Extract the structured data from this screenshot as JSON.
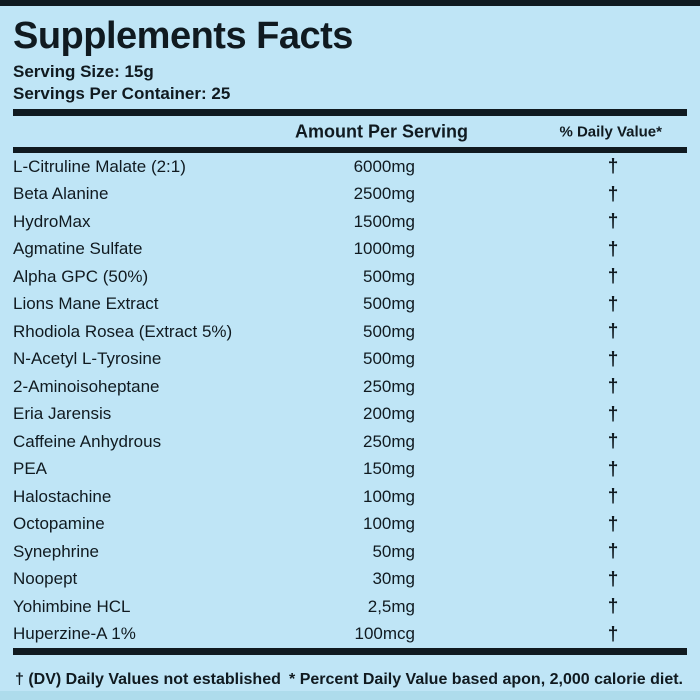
{
  "label": {
    "title": "Supplements Facts",
    "serving_size": "Serving Size: 15g",
    "servings_per_container": "Servings Per Container: 25",
    "columns": {
      "amount": "Amount Per Serving",
      "daily_value": "% Daily Value*"
    },
    "rows": [
      {
        "name": "L-Citruline Malate (2:1)",
        "amount": "6000mg",
        "dv": "†"
      },
      {
        "name": "Beta Alanine",
        "amount": "2500mg",
        "dv": "†"
      },
      {
        "name": "HydroMax",
        "amount": "1500mg",
        "dv": "†"
      },
      {
        "name": "Agmatine Sulfate",
        "amount": "1000mg",
        "dv": "†"
      },
      {
        "name": "Alpha GPC (50%)",
        "amount": "500mg",
        "dv": "†"
      },
      {
        "name": "Lions Mane Extract",
        "amount": "500mg",
        "dv": "†"
      },
      {
        "name": "Rhodiola Rosea (Extract 5%)",
        "amount": "500mg",
        "dv": "†"
      },
      {
        "name": "N-Acetyl L-Tyrosine",
        "amount": "500mg",
        "dv": "†"
      },
      {
        "name": "2-Aminoisoheptane",
        "amount": "250mg",
        "dv": "†"
      },
      {
        "name": "Eria Jarensis",
        "amount": "200mg",
        "dv": "†"
      },
      {
        "name": "Caffeine Anhydrous",
        "amount": "250mg",
        "dv": "†"
      },
      {
        "name": "PEA",
        "amount": "150mg",
        "dv": "†"
      },
      {
        "name": "Halostachine",
        "amount": "100mg",
        "dv": "†"
      },
      {
        "name": "Octopamine",
        "amount": "100mg",
        "dv": "†"
      },
      {
        "name": "Synephrine",
        "amount": "50mg",
        "dv": "†"
      },
      {
        "name": "Noopept",
        "amount": "30mg",
        "dv": "†"
      },
      {
        "name": "Yohimbine HCL",
        "amount": "2,5mg",
        "dv": "†"
      },
      {
        "name": "Huperzine-A 1%",
        "amount": "100mcg",
        "dv": "†"
      }
    ],
    "footnotes": {
      "left": "† (DV) Daily Values not established",
      "right": "* Percent Daily Value based apon, 2,000 calorie diet."
    },
    "colors": {
      "background": "#bfe5f6",
      "ink": "#101a20",
      "bottom_strip": "#aedcec"
    }
  }
}
